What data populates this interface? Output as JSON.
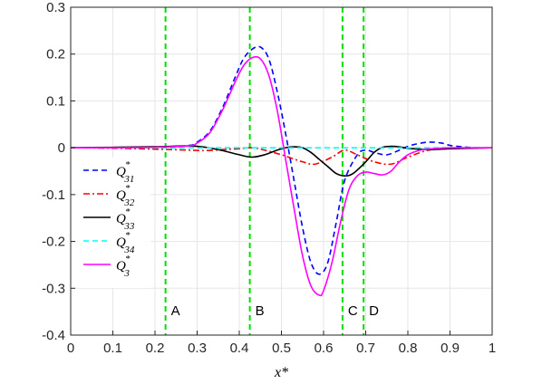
{
  "chart_data": {
    "type": "line",
    "title": "",
    "xlabel": "x*",
    "ylabel": "",
    "xlim": [
      0,
      1
    ],
    "ylim": [
      -0.4,
      0.3
    ],
    "xticks": [
      0,
      0.1,
      0.2,
      0.3,
      0.4,
      0.5,
      0.6,
      0.7,
      0.8,
      0.9,
      1
    ],
    "xtick_labels": [
      "0",
      "0.1",
      "0.2",
      "0.3",
      "0.4",
      "0.5",
      "0.6",
      "0.7",
      "0.8",
      "0.9",
      "1"
    ],
    "yticks": [
      -0.4,
      -0.3,
      -0.2,
      -0.1,
      0,
      0.1,
      0.2,
      0.3
    ],
    "ytick_labels": [
      "-0.4",
      "-0.3",
      "-0.2",
      "-0.1",
      "0",
      "0.1",
      "0.2",
      "0.3"
    ],
    "grid": true,
    "legend_position": "left",
    "series": [
      {
        "label_base": "Q",
        "label_sup": "*",
        "label_sub": "31",
        "color": "#0000ff",
        "dash": "6,4",
        "x": [
          0,
          0.1,
          0.2,
          0.28,
          0.3,
          0.33,
          0.36,
          0.39,
          0.41,
          0.43,
          0.45,
          0.47,
          0.49,
          0.51,
          0.53,
          0.55,
          0.57,
          0.59,
          0.61,
          0.63,
          0.65,
          0.68,
          0.7,
          0.72,
          0.75,
          0.78,
          0.8,
          0.82,
          0.85,
          0.88,
          0.9,
          0.93,
          0.96,
          1
        ],
        "y": [
          0,
          0,
          0.001,
          0.005,
          0.012,
          0.035,
          0.085,
          0.15,
          0.19,
          0.21,
          0.215,
          0.19,
          0.12,
          0.03,
          -0.07,
          -0.17,
          -0.245,
          -0.27,
          -0.245,
          -0.16,
          -0.07,
          -0.015,
          -0.005,
          -0.01,
          -0.015,
          -0.005,
          0.003,
          0.008,
          0.012,
          0.01,
          0.005,
          0.002,
          0,
          0
        ]
      },
      {
        "label_base": "Q",
        "label_sup": "*",
        "label_sub": "32",
        "color": "#ff0000",
        "dash": "7,3,2,3",
        "x": [
          0,
          0.1,
          0.2,
          0.28,
          0.32,
          0.36,
          0.4,
          0.43,
          0.46,
          0.5,
          0.55,
          0.58,
          0.62,
          0.65,
          0.68,
          0.72,
          0.76,
          0.8,
          0.85,
          0.9,
          1
        ],
        "y": [
          0,
          -0.001,
          -0.003,
          -0.005,
          -0.006,
          -0.004,
          -0.002,
          0,
          -0.005,
          -0.015,
          -0.03,
          -0.035,
          -0.02,
          -0.005,
          -0.015,
          -0.03,
          -0.035,
          -0.02,
          -0.005,
          -0.002,
          0
        ]
      },
      {
        "label_base": "Q",
        "label_sup": "*",
        "label_sub": "33",
        "color": "#000000",
        "dash": "",
        "x": [
          0,
          0.1,
          0.2,
          0.28,
          0.32,
          0.36,
          0.4,
          0.43,
          0.46,
          0.49,
          0.51,
          0.53,
          0.55,
          0.57,
          0.59,
          0.61,
          0.63,
          0.65,
          0.67,
          0.7,
          0.72,
          0.74,
          0.76,
          0.78,
          0.8,
          0.85,
          0.9,
          1
        ],
        "y": [
          0,
          0.001,
          0.002,
          0.004,
          0.001,
          -0.006,
          -0.015,
          -0.02,
          -0.015,
          -0.005,
          0,
          0.002,
          0,
          -0.01,
          -0.025,
          -0.04,
          -0.055,
          -0.06,
          -0.055,
          -0.03,
          -0.01,
          0.001,
          0.003,
          0.002,
          -0.001,
          -0.004,
          -0.002,
          0
        ]
      },
      {
        "label_base": "Q",
        "label_sup": "*",
        "label_sub": "34",
        "color": "#00ffff",
        "dash": "6,4",
        "x": [
          0,
          0.5,
          1
        ],
        "y": [
          0,
          0,
          0
        ]
      },
      {
        "label_base": "Q",
        "label_sup": "*",
        "label_sub": "3",
        "color": "#ff00ff",
        "dash": "",
        "x": [
          0,
          0.1,
          0.2,
          0.28,
          0.3,
          0.33,
          0.36,
          0.39,
          0.41,
          0.43,
          0.45,
          0.47,
          0.49,
          0.51,
          0.53,
          0.55,
          0.57,
          0.59,
          0.6,
          0.62,
          0.64,
          0.66,
          0.68,
          0.7,
          0.72,
          0.74,
          0.76,
          0.78,
          0.8,
          0.83,
          0.86,
          0.9,
          0.95,
          1
        ],
        "y": [
          0,
          0,
          0.001,
          0.004,
          0.01,
          0.032,
          0.08,
          0.14,
          0.175,
          0.192,
          0.19,
          0.155,
          0.08,
          -0.025,
          -0.13,
          -0.23,
          -0.295,
          -0.315,
          -0.305,
          -0.245,
          -0.16,
          -0.09,
          -0.06,
          -0.052,
          -0.055,
          -0.058,
          -0.05,
          -0.03,
          -0.015,
          -0.005,
          -0.002,
          0,
          0,
          0
        ]
      }
    ],
    "vertical_markers": [
      {
        "x": 0.225,
        "label": "A",
        "color": "#00dd00"
      },
      {
        "x": 0.425,
        "label": "B",
        "color": "#00dd00"
      },
      {
        "x": 0.645,
        "label": "C",
        "color": "#00dd00"
      },
      {
        "x": 0.695,
        "label": "D",
        "color": "#00dd00"
      }
    ]
  }
}
